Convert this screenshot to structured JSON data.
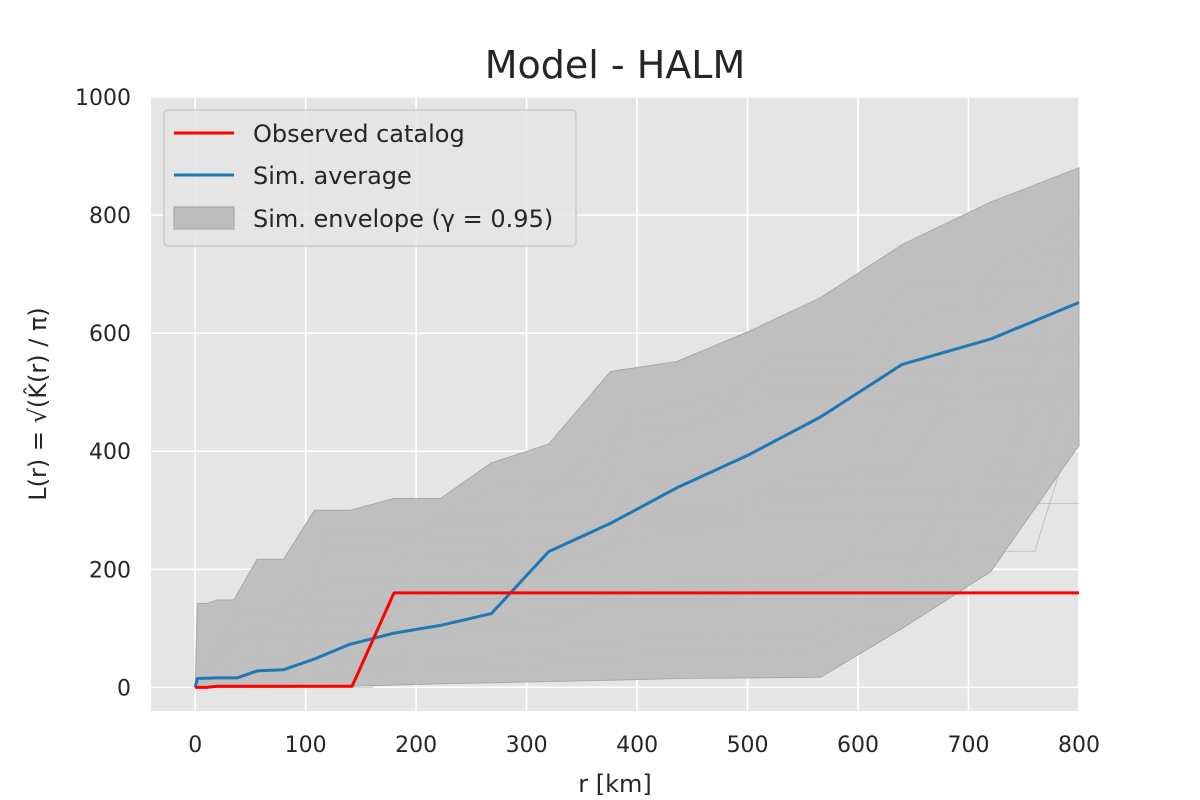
{
  "chart_data": {
    "type": "line",
    "title": "Model - HALM",
    "xlabel": "r  [km]",
    "ylabel": "L(r) = √(K̂(r) / π)",
    "xlim": [
      -40,
      800
    ],
    "ylim": [
      -40,
      1000
    ],
    "x_ticks": [
      0,
      100,
      200,
      300,
      400,
      500,
      600,
      700,
      800
    ],
    "y_ticks": [
      0,
      200,
      400,
      600,
      800,
      1000
    ],
    "grid": true,
    "legend_position": "top-left",
    "legend": {
      "observed": "Observed catalog",
      "average": "Sim. average",
      "envelope": "Sim. envelope (γ = 0.95)"
    },
    "colors": {
      "observed": "#ff0000",
      "average": "#1f77b4",
      "envelope": "#bdbdbd",
      "background": "#e5e5e5"
    },
    "series": [
      {
        "name": "Observed catalog",
        "x": [
          0,
          10,
          20,
          40,
          60,
          80,
          100,
          142,
          180,
          250,
          300,
          400,
          500,
          600,
          700,
          800
        ],
        "y": [
          0,
          0,
          2,
          2,
          2,
          2,
          2,
          2,
          160,
          160,
          160,
          160,
          160,
          160,
          160,
          160
        ]
      },
      {
        "name": "Sim. average",
        "x": [
          0,
          2,
          20,
          38,
          56,
          80,
          108,
          140,
          180,
          222,
          268,
          320,
          376,
          436,
          500,
          566,
          640,
          720,
          800
        ],
        "y": [
          0,
          15,
          16,
          16,
          28,
          30,
          48,
          73,
          92,
          105,
          125,
          230,
          278,
          338,
          393,
          458,
          547,
          590,
          652
        ]
      }
    ],
    "envelope": {
      "name": "Sim. envelope (γ = 0.95)",
      "x": [
        0,
        2,
        10,
        20,
        35,
        56,
        80,
        108,
        140,
        180,
        222,
        268,
        320,
        376,
        436,
        500,
        566,
        640,
        720,
        800
      ],
      "upper": [
        0,
        142,
        142,
        148,
        148,
        217,
        217,
        300,
        300,
        320,
        320,
        380,
        412,
        535,
        552,
        602,
        660,
        750,
        822,
        880
      ],
      "lower": [
        0,
        0,
        0,
        0,
        0,
        0,
        0,
        1,
        2,
        4,
        6,
        8,
        10,
        12,
        15,
        16,
        17,
        100,
        196,
        410
      ]
    }
  }
}
